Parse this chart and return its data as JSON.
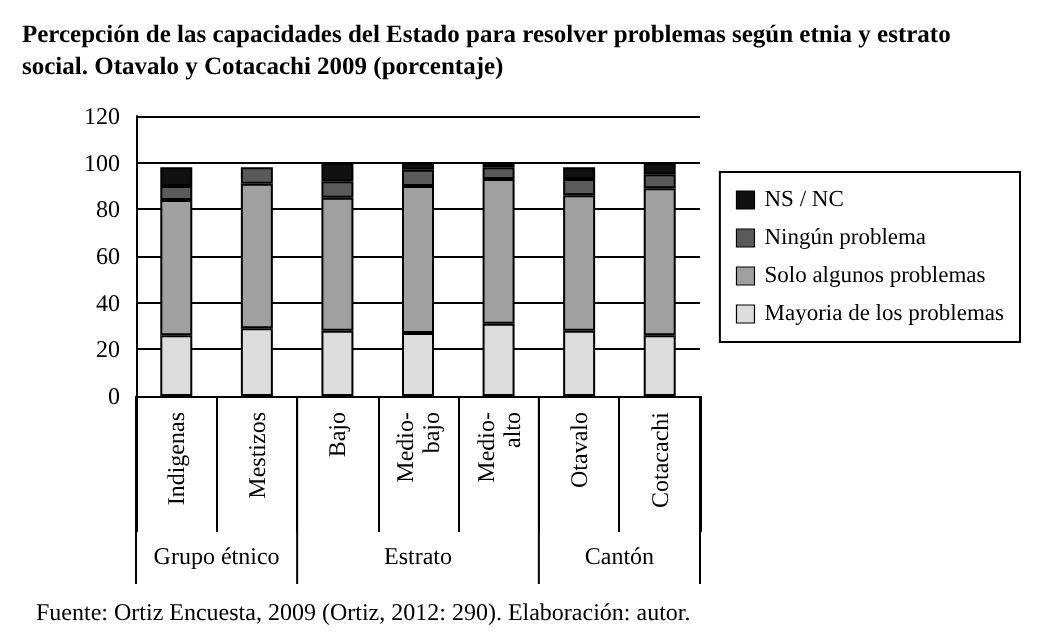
{
  "chart_data": {
    "type": "bar",
    "stacked": true,
    "title": "Percepción de las capacidades del Estado para resolver problemas según etnia y estrato social. Otavalo y Cotacachi 2009 (porcentaje)",
    "categories": [
      "Indigenas",
      "Mestizos",
      "Bajo",
      "Medio-bajo",
      "Medio-alto",
      "Otavalo",
      "Cotacachi"
    ],
    "series": [
      {
        "name": "Mayoria de los problemas",
        "color": "#dcdcdc",
        "values": [
          26,
          29,
          28,
          27,
          31,
          28,
          26
        ]
      },
      {
        "name": "Solo algunos problemas",
        "color": "#a0a0a0",
        "values": [
          58,
          62,
          57,
          63,
          62,
          58,
          63
        ]
      },
      {
        "name": "Ningún problema",
        "color": "#5a5a5a",
        "values": [
          6,
          7,
          7,
          7,
          5,
          7,
          6
        ]
      },
      {
        "name": "NS / NC",
        "color": "#111111",
        "values": [
          8,
          null,
          8,
          3,
          2,
          5,
          5
        ]
      }
    ],
    "ylim": [
      0,
      120
    ],
    "yticks": [
      0,
      20,
      40,
      60,
      80,
      100,
      120
    ],
    "grid": "y",
    "legend": "right",
    "annotations": [
      "Grupo étnico",
      "Estrato",
      "Cantón",
      "Fuente: Ortiz Encuesta, 2009 (Ortiz, 2012: 290). Elaboración: autor."
    ]
  }
}
